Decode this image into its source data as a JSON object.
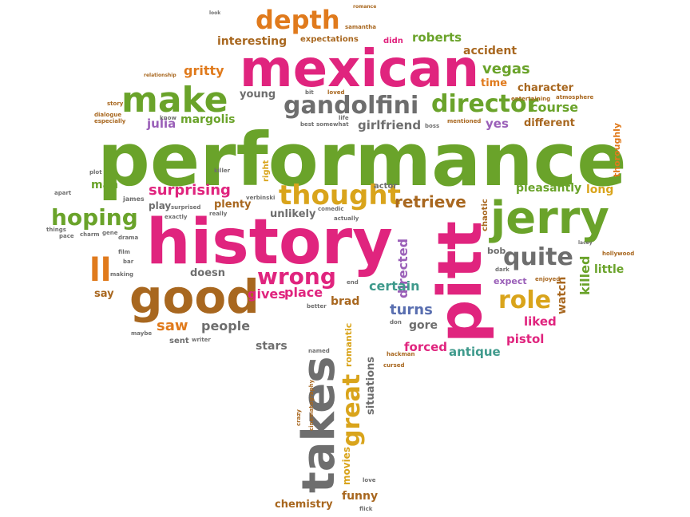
{
  "palette": {
    "green": "#6aa32a",
    "pink": "#e0247e",
    "orange": "#e07a1c",
    "gray": "#6e6e6e",
    "gold": "#d9a41b",
    "blue": "#5a6fb0",
    "brown": "#a8671f",
    "teal": "#3f9a8c",
    "purple": "#9a5fb8",
    "red": "#d43a2a"
  },
  "words": [
    {
      "text": "performance",
      "color": "green"
    },
    {
      "text": "history",
      "color": "pink"
    },
    {
      "text": "mexican",
      "color": "pink"
    },
    {
      "text": "pitt",
      "color": "pink"
    },
    {
      "text": "jerry",
      "color": "green"
    },
    {
      "text": "good",
      "color": "brown"
    },
    {
      "text": "takes",
      "color": "gray"
    },
    {
      "text": "make",
      "color": "green"
    },
    {
      "text": "gandolfini",
      "color": "gray"
    },
    {
      "text": "director",
      "color": "green"
    },
    {
      "text": "thought",
      "color": "gold"
    },
    {
      "text": "depth",
      "color": "orange"
    },
    {
      "text": "great",
      "color": "gold"
    },
    {
      "text": "ll",
      "color": "orange"
    },
    {
      "text": "hoping",
      "color": "green"
    },
    {
      "text": "wrong",
      "color": "pink"
    },
    {
      "text": "quite",
      "color": "gray"
    },
    {
      "text": "role",
      "color": "gold"
    },
    {
      "text": "surprising",
      "color": "pink"
    },
    {
      "text": "retrieve",
      "color": "brown"
    },
    {
      "text": "interesting",
      "color": "brown"
    },
    {
      "text": "vegas",
      "color": "green"
    },
    {
      "text": "roberts",
      "color": "green"
    },
    {
      "text": "accident",
      "color": "brown"
    },
    {
      "text": "gritty",
      "color": "orange"
    },
    {
      "text": "young",
      "color": "gray"
    },
    {
      "text": "character",
      "color": "brown"
    },
    {
      "text": "course",
      "color": "green"
    },
    {
      "text": "different",
      "color": "brown"
    },
    {
      "text": "julia",
      "color": "purple"
    },
    {
      "text": "margolis",
      "color": "green"
    },
    {
      "text": "girlfriend",
      "color": "gray"
    },
    {
      "text": "yes",
      "color": "purple"
    },
    {
      "text": "time",
      "color": "orange"
    },
    {
      "text": "expectations",
      "color": "brown"
    },
    {
      "text": "didn",
      "color": "pink"
    },
    {
      "text": "samantha",
      "color": "brown"
    },
    {
      "text": "romance",
      "color": "brown"
    },
    {
      "text": "pleasantly",
      "color": "green"
    },
    {
      "text": "long",
      "color": "gold"
    },
    {
      "text": "plenty",
      "color": "brown"
    },
    {
      "text": "unlikely",
      "color": "gray"
    },
    {
      "text": "actor",
      "color": "gray"
    },
    {
      "text": "chaotic",
      "color": "brown"
    },
    {
      "text": "directed",
      "color": "purple"
    },
    {
      "text": "certain",
      "color": "teal"
    },
    {
      "text": "turns",
      "color": "blue"
    },
    {
      "text": "gives",
      "color": "pink"
    },
    {
      "text": "place",
      "color": "pink"
    },
    {
      "text": "brad",
      "color": "brown"
    },
    {
      "text": "saw",
      "color": "orange"
    },
    {
      "text": "people",
      "color": "gray"
    },
    {
      "text": "doesn",
      "color": "gray"
    },
    {
      "text": "say",
      "color": "brown"
    },
    {
      "text": "stars",
      "color": "gray"
    },
    {
      "text": "gore",
      "color": "gray"
    },
    {
      "text": "forced",
      "color": "pink"
    },
    {
      "text": "antique",
      "color": "teal"
    },
    {
      "text": "pistol",
      "color": "pink"
    },
    {
      "text": "liked",
      "color": "pink"
    },
    {
      "text": "watch",
      "color": "brown"
    },
    {
      "text": "killed",
      "color": "green"
    },
    {
      "text": "little",
      "color": "green"
    },
    {
      "text": "expect",
      "color": "purple"
    },
    {
      "text": "bob",
      "color": "gray"
    },
    {
      "text": "situations",
      "color": "gray"
    },
    {
      "text": "movies",
      "color": "gold"
    },
    {
      "text": "funny",
      "color": "brown"
    },
    {
      "text": "chemistry",
      "color": "brown"
    },
    {
      "text": "romantic",
      "color": "gold"
    },
    {
      "text": "thoroughly",
      "color": "orange"
    },
    {
      "text": "hollywood",
      "color": "brown"
    },
    {
      "text": "play",
      "color": "gray"
    },
    {
      "text": "right",
      "color": "gold"
    },
    {
      "text": "james",
      "color": "gray"
    },
    {
      "text": "man",
      "color": "green"
    },
    {
      "text": "sent",
      "color": "gray"
    },
    {
      "text": "enjoyed",
      "color": "brown"
    },
    {
      "text": "entertaining",
      "color": "brown"
    },
    {
      "text": "atmosphere",
      "color": "brown"
    },
    {
      "text": "mentioned",
      "color": "brown"
    },
    {
      "text": "dialogue",
      "color": "brown"
    },
    {
      "text": "story",
      "color": "brown"
    },
    {
      "text": "loved",
      "color": "brown"
    },
    {
      "text": "relationship",
      "color": "brown"
    },
    {
      "text": "crazy",
      "color": "brown"
    },
    {
      "text": "cinematography",
      "color": "brown"
    },
    {
      "text": "hackman",
      "color": "brown"
    },
    {
      "text": "cursed",
      "color": "brown"
    },
    {
      "text": "really",
      "color": "gray"
    },
    {
      "text": "killer",
      "color": "gray"
    },
    {
      "text": "charm",
      "color": "gray"
    },
    {
      "text": "drama",
      "color": "gray"
    },
    {
      "text": "gene",
      "color": "gray"
    },
    {
      "text": "pace",
      "color": "gray"
    },
    {
      "text": "things",
      "color": "gray"
    },
    {
      "text": "apart",
      "color": "gray"
    },
    {
      "text": "plot",
      "color": "gray"
    },
    {
      "text": "film",
      "color": "gray"
    },
    {
      "text": "bar",
      "color": "gray"
    },
    {
      "text": "making",
      "color": "gray"
    },
    {
      "text": "maybe",
      "color": "gray"
    },
    {
      "text": "better",
      "color": "gray"
    },
    {
      "text": "writer",
      "color": "gray"
    },
    {
      "text": "named",
      "color": "gray"
    },
    {
      "text": "best",
      "color": "gray"
    },
    {
      "text": "somewhat",
      "color": "gray"
    },
    {
      "text": "boss",
      "color": "gray"
    },
    {
      "text": "know",
      "color": "gray"
    },
    {
      "text": "especially",
      "color": "brown"
    },
    {
      "text": "look",
      "color": "gray"
    },
    {
      "text": "bit",
      "color": "gray"
    },
    {
      "text": "life",
      "color": "gray"
    },
    {
      "text": "exactly",
      "color": "gray"
    },
    {
      "text": "surprised",
      "color": "gray"
    },
    {
      "text": "verbinski",
      "color": "gray"
    },
    {
      "text": "comedic",
      "color": "gray"
    },
    {
      "text": "actually",
      "color": "gray"
    },
    {
      "text": "end",
      "color": "gray"
    },
    {
      "text": "dark",
      "color": "gray"
    },
    {
      "text": "lacey",
      "color": "gray"
    },
    {
      "text": "don",
      "color": "gray"
    },
    {
      "text": "love",
      "color": "gray"
    },
    {
      "text": "flick",
      "color": "gray"
    }
  ]
}
